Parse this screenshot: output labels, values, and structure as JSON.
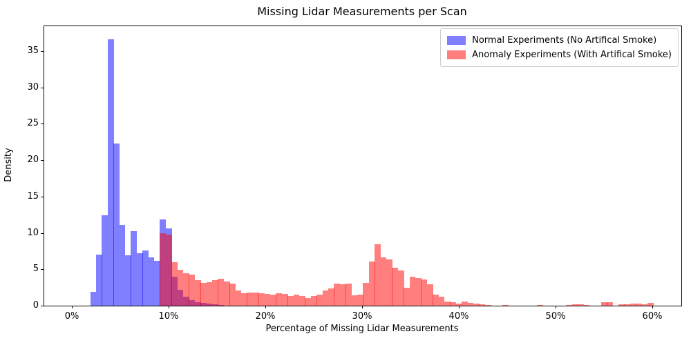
{
  "figure": {
    "title": "Missing Lidar Measurements per Scan",
    "xlabel": "Percentage of Missing Lidar Measurements",
    "ylabel": "Density"
  },
  "chart_data": {
    "type": "bar",
    "subtype": "overlapping-histograms",
    "title": "Missing Lidar Measurements per Scan",
    "xlabel": "Percentage of Missing Lidar Measurements",
    "ylabel": "Density",
    "x_unit": "percent",
    "xlim": [
      -2.86,
      63.0
    ],
    "ylim": [
      0,
      38.4
    ],
    "grid": false,
    "x_ticks": {
      "values": [
        0,
        10,
        20,
        30,
        40,
        50,
        60
      ],
      "labels": [
        "0%",
        "10%",
        "20%",
        "30%",
        "40%",
        "50%",
        "60%"
      ]
    },
    "y_ticks": {
      "values": [
        0,
        5,
        10,
        15,
        20,
        25,
        30,
        35
      ],
      "labels": [
        "0",
        "5",
        "10",
        "15",
        "20",
        "25",
        "30",
        "35"
      ]
    },
    "legend": {
      "position": "upper right"
    },
    "overlap_color": "#bf407f",
    "series": [
      {
        "name": "Normal Experiments (No Artifical Smoke)",
        "color": "rgba(0,0,255,0.5)",
        "base_hex": "#0000ff",
        "alpha": 0.5,
        "bin_start_pct": 1.9,
        "bin_width_pct": 0.6,
        "densities": [
          1.9,
          7.0,
          12.4,
          36.6,
          22.3,
          11.1,
          6.9,
          10.2,
          7.2,
          7.6,
          6.6,
          6.2,
          11.9,
          10.6,
          4.0,
          2.2,
          1.25,
          0.8,
          0.5,
          0.35,
          0.25,
          0.15,
          0.1
        ]
      },
      {
        "name": "Anomaly Experiments (With Artifical Smoke)",
        "color": "rgba(255,0,0,0.5)",
        "base_hex": "#ff0000",
        "alpha": 0.5,
        "bin_start_pct": 9.1,
        "bin_width_pct": 0.6,
        "densities": [
          10.0,
          9.8,
          6.0,
          4.9,
          4.5,
          4.3,
          3.5,
          3.1,
          3.2,
          3.5,
          3.7,
          3.3,
          3.0,
          2.1,
          1.7,
          1.85,
          1.8,
          1.75,
          1.6,
          1.5,
          1.75,
          1.6,
          1.35,
          1.55,
          1.3,
          1.0,
          1.35,
          1.5,
          2.1,
          2.4,
          3.05,
          2.9,
          3.0,
          1.4,
          1.55,
          3.1,
          6.1,
          8.4,
          6.6,
          6.4,
          5.2,
          4.8,
          2.5,
          4.0,
          3.8,
          3.6,
          2.9,
          1.5,
          1.2,
          0.6,
          0.5,
          0.3,
          0.55,
          0.35,
          0.25,
          0.15,
          0.1,
          0,
          0,
          0.1,
          0,
          0,
          0,
          0,
          0,
          0.12,
          0,
          0,
          0,
          0,
          0.1,
          0.2,
          0.2,
          0.12,
          0,
          0,
          0.5,
          0.45,
          0,
          0.15,
          0.2,
          0.25,
          0.3,
          0.2,
          0.35
        ]
      }
    ]
  }
}
